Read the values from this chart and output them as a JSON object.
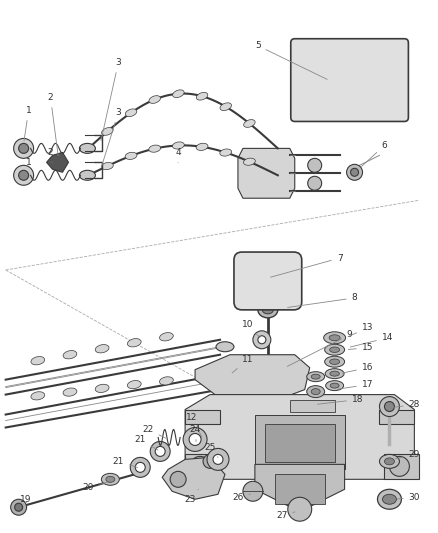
{
  "background_color": "#ffffff",
  "line_color": "#3a3a3a",
  "label_color": "#333333",
  "fig_width": 4.38,
  "fig_height": 5.33,
  "dpi": 100,
  "label_fontsize": 6.5,
  "leader_color": "#888888",
  "part_color": "#c8c8c8",
  "part_edge": "#3a3a3a"
}
